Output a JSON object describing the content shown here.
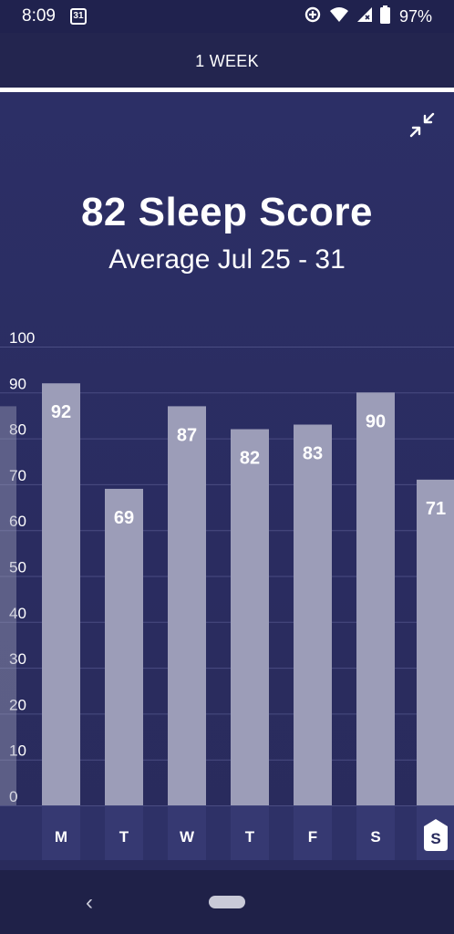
{
  "status_bar": {
    "time": "8:09",
    "calendar_day": "31",
    "battery": "97%"
  },
  "period": {
    "label": "1 WEEK"
  },
  "summary": {
    "title": "82 Sleep Score",
    "subtitle": "Average Jul 25 - 31"
  },
  "chart_data": {
    "type": "bar",
    "categories": [
      "M",
      "T",
      "W",
      "T",
      "F",
      "S",
      "S"
    ],
    "values": [
      92,
      69,
      87,
      82,
      83,
      90,
      71
    ],
    "data_labels": [
      "92",
      "69",
      "87",
      "82",
      "83",
      "90",
      "71"
    ],
    "y_ticks": [
      "0",
      "10",
      "20",
      "30",
      "40",
      "50",
      "60",
      "70",
      "80",
      "90",
      "100"
    ],
    "ylim": [
      0,
      100
    ],
    "grid": true,
    "selected_category_index": 6,
    "bar_color": "#9c9db8",
    "grid_color": "#4a4d82"
  }
}
